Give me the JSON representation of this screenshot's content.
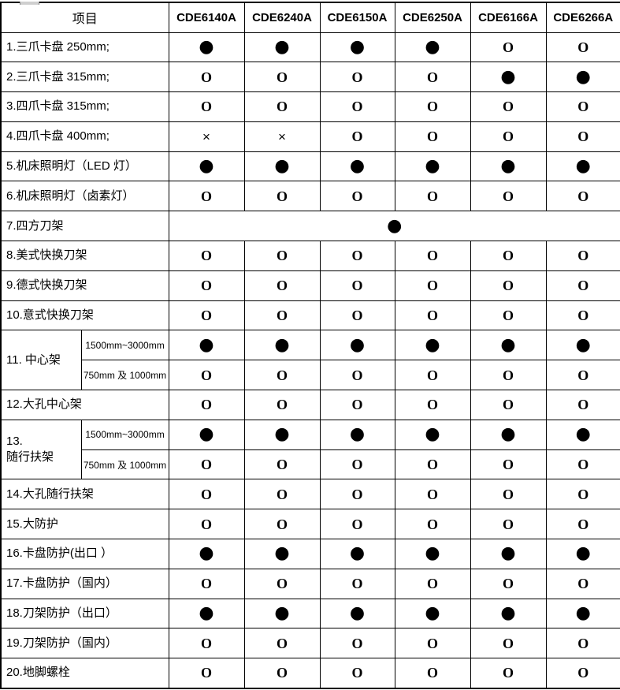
{
  "table": {
    "header": {
      "item_label": "项目",
      "models": [
        "CDE6140A",
        "CDE6240A",
        "CDE6150A",
        "CDE6250A",
        "CDE6166A",
        "CDE6266A"
      ]
    },
    "rows": [
      {
        "label": "1.三爪卡盘 250mm;",
        "cells": [
          "●",
          "●",
          "●",
          "●",
          "O",
          "O"
        ]
      },
      {
        "label": "2.三爪卡盘 315mm;",
        "cells": [
          "O",
          "O",
          "O",
          "O",
          "●",
          "●"
        ]
      },
      {
        "label": "3.四爪卡盘 315mm;",
        "cells": [
          "O",
          "O",
          "O",
          "O",
          "O",
          "O"
        ]
      },
      {
        "label": "4.四爪卡盘 400mm;",
        "cells": [
          "×",
          "×",
          "O",
          "O",
          "O",
          "O"
        ]
      },
      {
        "label": "5.机床照明灯（LED 灯）",
        "cells": [
          "●",
          "●",
          "●",
          "●",
          "●",
          "●"
        ]
      },
      {
        "label": "6.机床照明灯（卤素灯）",
        "cells": [
          "O",
          "O",
          "O",
          "O",
          "O",
          "O"
        ]
      },
      {
        "label": "7.四方刀架",
        "merged": "●"
      },
      {
        "label": "8.美式快换刀架",
        "cells": [
          "O",
          "O",
          "O",
          "O",
          "O",
          "O"
        ]
      },
      {
        "label": "9.德式快换刀架",
        "cells": [
          "O",
          "O",
          "O",
          "O",
          "O",
          "O"
        ]
      },
      {
        "label": "10.意式快换刀架",
        "cells": [
          "O",
          "O",
          "O",
          "O",
          "O",
          "O"
        ]
      },
      {
        "label": "11. 中心架",
        "subrows": [
          {
            "sublabel": "1500mm~3000mm",
            "cells": [
              "●",
              "●",
              "●",
              "●",
              "●",
              "●"
            ]
          },
          {
            "sublabel": "750mm 及 1000mm",
            "cells": [
              "O",
              "O",
              "O",
              "O",
              "O",
              "O"
            ]
          }
        ]
      },
      {
        "label": "12.大孔中心架",
        "cells": [
          "O",
          "O",
          "O",
          "O",
          "O",
          "O"
        ]
      },
      {
        "label": "13.\n随行扶架",
        "subrows": [
          {
            "sublabel": "1500mm~3000mm",
            "cells": [
              "●",
              "●",
              "●",
              "●",
              "●",
              "●"
            ]
          },
          {
            "sublabel": "750mm 及 1000mm",
            "cells": [
              "O",
              "O",
              "O",
              "O",
              "O",
              "O"
            ]
          }
        ]
      },
      {
        "label": "14.大孔随行扶架",
        "cells": [
          "O",
          "O",
          "O",
          "O",
          "O",
          "O"
        ]
      },
      {
        "label": "15.大防护",
        "cells": [
          "O",
          "O",
          "O",
          "O",
          "O",
          "O"
        ]
      },
      {
        "label": "16.卡盘防护(出口 ）",
        "cells": [
          "●",
          "●",
          "●",
          "●",
          "●",
          "●"
        ]
      },
      {
        "label": "17.卡盘防护（国内）",
        "cells": [
          "O",
          "O",
          "O",
          "O",
          "O",
          "O"
        ]
      },
      {
        "label": "18.刀架防护（出口）",
        "cells": [
          "●",
          "●",
          "●",
          "●",
          "●",
          "●"
        ]
      },
      {
        "label": "19.刀架防护（国内）",
        "cells": [
          "O",
          "O",
          "O",
          "O",
          "O",
          "O"
        ]
      },
      {
        "label": "20.地脚螺栓",
        "cells": [
          "O",
          "O",
          "O",
          "O",
          "O",
          "O"
        ]
      }
    ]
  }
}
